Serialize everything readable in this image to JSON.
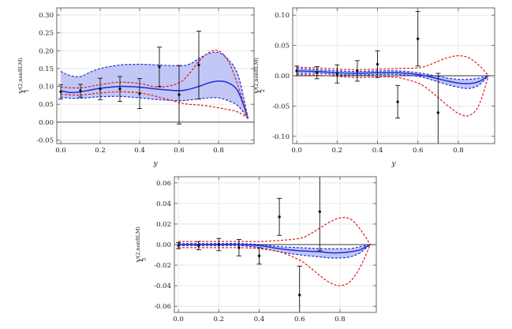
{
  "chart_data": [
    {
      "type": "line",
      "xlabel": "y",
      "ylabel": "Y_1^{(2,nonBLM)}",
      "ylabel_main": "Y",
      "ylabel_sub": "1",
      "ylabel_sup": "(2,nonBLM)",
      "xlim": [
        -0.02,
        0.98
      ],
      "ylim": [
        -0.06,
        0.32
      ],
      "xticks": [
        0.0,
        0.2,
        0.4,
        0.6,
        0.8
      ],
      "xtick_labels": [
        "0.0",
        "0.2",
        "0.4",
        "0.6",
        "0.8"
      ],
      "yticks": [
        -0.05,
        0.0,
        0.05,
        0.1,
        0.15,
        0.2,
        0.25,
        0.3
      ],
      "ytick_labels": [
        "-0.05",
        "0.00",
        "0.05",
        "0.10",
        "0.15",
        "0.20",
        "0.25",
        "0.30"
      ],
      "grid": true,
      "series": [
        {
          "style": "central",
          "color": "#1a2fd6",
          "x": [
            0,
            0.05,
            0.1,
            0.15,
            0.2,
            0.3,
            0.4,
            0.5,
            0.6,
            0.65,
            0.7,
            0.75,
            0.8,
            0.85,
            0.9,
            0.95
          ],
          "y": [
            0.088,
            0.083,
            0.085,
            0.09,
            0.095,
            0.1,
            0.098,
            0.092,
            0.088,
            0.092,
            0.1,
            0.11,
            0.115,
            0.11,
            0.085,
            0.01
          ]
        },
        {
          "style": "band-upper",
          "color": "#1a2fd6",
          "x": [
            0,
            0.05,
            0.1,
            0.15,
            0.2,
            0.3,
            0.4,
            0.5,
            0.6,
            0.65,
            0.7,
            0.75,
            0.8,
            0.85,
            0.9,
            0.95
          ],
          "y": [
            0.142,
            0.13,
            0.128,
            0.14,
            0.15,
            0.16,
            0.162,
            0.16,
            0.158,
            0.162,
            0.178,
            0.192,
            0.195,
            0.175,
            0.13,
            0.01
          ]
        },
        {
          "style": "band-lower",
          "color": "#1a2fd6",
          "x": [
            0,
            0.05,
            0.1,
            0.15,
            0.2,
            0.3,
            0.4,
            0.5,
            0.6,
            0.65,
            0.7,
            0.75,
            0.8,
            0.85,
            0.9,
            0.95
          ],
          "y": [
            0.07,
            0.067,
            0.067,
            0.069,
            0.071,
            0.072,
            0.068,
            0.063,
            0.06,
            0.062,
            0.065,
            0.068,
            0.068,
            0.06,
            0.045,
            0.01
          ]
        },
        {
          "style": "dashed",
          "color": "#e01818",
          "x": [
            0,
            0.1,
            0.2,
            0.3,
            0.4,
            0.5,
            0.6,
            0.65,
            0.7,
            0.75,
            0.8,
            0.85,
            0.9,
            0.95
          ],
          "y": [
            0.098,
            0.096,
            0.105,
            0.112,
            0.108,
            0.098,
            0.11,
            0.135,
            0.17,
            0.195,
            0.2,
            0.17,
            0.1,
            0.01
          ]
        },
        {
          "style": "dashed",
          "color": "#e01818",
          "x": [
            0,
            0.1,
            0.2,
            0.3,
            0.4,
            0.5,
            0.6,
            0.65,
            0.7,
            0.75,
            0.8,
            0.85,
            0.9,
            0.95
          ],
          "y": [
            0.078,
            0.076,
            0.082,
            0.085,
            0.082,
            0.07,
            0.055,
            0.05,
            0.048,
            0.045,
            0.04,
            0.035,
            0.028,
            0.01
          ]
        }
      ],
      "points": [
        {
          "x": 0.0,
          "y": 0.085,
          "err": 0.02
        },
        {
          "x": 0.1,
          "y": 0.088,
          "err": 0.018
        },
        {
          "x": 0.2,
          "y": 0.093,
          "err": 0.03
        },
        {
          "x": 0.3,
          "y": 0.093,
          "err": 0.035
        },
        {
          "x": 0.4,
          "y": 0.08,
          "err": 0.042
        },
        {
          "x": 0.5,
          "y": 0.155,
          "err": 0.055
        },
        {
          "x": 0.6,
          "y": 0.077,
          "err": 0.082
        },
        {
          "x": 0.7,
          "y": 0.16,
          "err": 0.095
        }
      ]
    },
    {
      "type": "line",
      "xlabel": "y",
      "ylabel": "Y_2^{(2,nonBLM)}",
      "ylabel_main": "Y",
      "ylabel_sub": "2",
      "ylabel_sup": "(2,nonBLM)",
      "xlim": [
        -0.02,
        0.98
      ],
      "ylim": [
        -0.112,
        0.112
      ],
      "xticks": [
        0.0,
        0.2,
        0.4,
        0.6,
        0.8
      ],
      "xtick_labels": [
        "0.0",
        "0.2",
        "0.4",
        "0.6",
        "0.8"
      ],
      "yticks": [
        -0.1,
        -0.05,
        0.0,
        0.05,
        0.1
      ],
      "ytick_labels": [
        "-0.10",
        "-0.05",
        "0.00",
        "0.05",
        "0.10"
      ],
      "grid": true,
      "series": [
        {
          "style": "central",
          "color": "#1a2fd6",
          "x": [
            0,
            0.1,
            0.2,
            0.3,
            0.4,
            0.5,
            0.6,
            0.65,
            0.7,
            0.75,
            0.8,
            0.85,
            0.9,
            0.95
          ],
          "y": [
            0.008,
            0.007,
            0.005,
            0.004,
            0.005,
            0.005,
            0.002,
            -0.001,
            -0.005,
            -0.009,
            -0.012,
            -0.013,
            -0.01,
            0.0
          ]
        },
        {
          "style": "band-upper",
          "color": "#1a2fd6",
          "x": [
            0,
            0.1,
            0.2,
            0.3,
            0.4,
            0.5,
            0.6,
            0.65,
            0.7,
            0.75,
            0.8,
            0.85,
            0.9,
            0.95
          ],
          "y": [
            0.012,
            0.01,
            0.008,
            0.007,
            0.008,
            0.008,
            0.005,
            0.002,
            -0.001,
            -0.004,
            -0.006,
            -0.006,
            -0.004,
            0.0
          ]
        },
        {
          "style": "band-lower",
          "color": "#1a2fd6",
          "x": [
            0,
            0.1,
            0.2,
            0.3,
            0.4,
            0.5,
            0.6,
            0.65,
            0.7,
            0.75,
            0.8,
            0.85,
            0.9,
            0.95
          ],
          "y": [
            0.004,
            0.004,
            0.002,
            0.001,
            0.002,
            0.002,
            -0.001,
            -0.005,
            -0.01,
            -0.015,
            -0.019,
            -0.021,
            -0.016,
            0.0
          ]
        },
        {
          "style": "dashed",
          "color": "#e01818",
          "x": [
            0,
            0.1,
            0.2,
            0.3,
            0.4,
            0.5,
            0.6,
            0.65,
            0.7,
            0.75,
            0.8,
            0.85,
            0.9,
            0.95
          ],
          "y": [
            0.014,
            0.013,
            0.011,
            0.01,
            0.011,
            0.012,
            0.013,
            0.017,
            0.024,
            0.03,
            0.033,
            0.03,
            0.018,
            0.0
          ]
        },
        {
          "style": "dashed",
          "color": "#e01818",
          "x": [
            0,
            0.1,
            0.2,
            0.3,
            0.4,
            0.5,
            0.6,
            0.65,
            0.7,
            0.75,
            0.8,
            0.85,
            0.9,
            0.95
          ],
          "y": [
            0.002,
            0.001,
            -0.001,
            -0.003,
            -0.002,
            -0.003,
            -0.012,
            -0.022,
            -0.036,
            -0.05,
            -0.062,
            -0.066,
            -0.05,
            0.0
          ]
        }
      ],
      "points": [
        {
          "x": 0.0,
          "y": 0.008,
          "err": 0.008
        },
        {
          "x": 0.1,
          "y": 0.005,
          "err": 0.01
        },
        {
          "x": 0.2,
          "y": 0.003,
          "err": 0.015
        },
        {
          "x": 0.3,
          "y": 0.008,
          "err": 0.017
        },
        {
          "x": 0.4,
          "y": 0.019,
          "err": 0.022
        },
        {
          "x": 0.5,
          "y": -0.043,
          "err": 0.027
        },
        {
          "x": 0.6,
          "y": 0.061,
          "err": 0.045
        },
        {
          "x": 0.7,
          "y": -0.061,
          "err": 0.065
        }
      ]
    },
    {
      "type": "line",
      "xlabel": "y",
      "ylabel": "Y_3^{(2,nonBLM)}",
      "ylabel_main": "Y",
      "ylabel_sub": "3",
      "ylabel_sup": "(2,nonBLM)",
      "xlim": [
        -0.02,
        0.98
      ],
      "ylim": [
        -0.066,
        0.066
      ],
      "xticks": [
        0.0,
        0.2,
        0.4,
        0.6,
        0.8
      ],
      "xtick_labels": [
        "0.0",
        "0.2",
        "0.4",
        "0.6",
        "0.8"
      ],
      "yticks": [
        -0.06,
        -0.04,
        -0.02,
        0.0,
        0.02,
        0.04,
        0.06
      ],
      "ytick_labels": [
        "-0.06",
        "-0.04",
        "-0.02",
        "0.00",
        "0.02",
        "0.04",
        "0.06"
      ],
      "grid": true,
      "series": [
        {
          "style": "central",
          "color": "#1a2fd6",
          "x": [
            0,
            0.1,
            0.2,
            0.3,
            0.4,
            0.5,
            0.6,
            0.7,
            0.75,
            0.8,
            0.85,
            0.9,
            0.95
          ],
          "y": [
            0.0,
            0.0,
            0.0,
            0.0,
            -0.001,
            -0.004,
            -0.006,
            -0.007,
            -0.008,
            -0.008,
            -0.007,
            -0.005,
            0.0
          ]
        },
        {
          "style": "band-upper",
          "color": "#1a2fd6",
          "x": [
            0,
            0.1,
            0.2,
            0.3,
            0.4,
            0.5,
            0.6,
            0.7,
            0.75,
            0.8,
            0.85,
            0.9,
            0.95
          ],
          "y": [
            0.001,
            0.001,
            0.001,
            0.001,
            0.0,
            -0.002,
            -0.003,
            -0.004,
            -0.004,
            -0.004,
            -0.004,
            -0.002,
            0.0
          ]
        },
        {
          "style": "band-lower",
          "color": "#1a2fd6",
          "x": [
            0,
            0.1,
            0.2,
            0.3,
            0.4,
            0.5,
            0.6,
            0.7,
            0.75,
            0.8,
            0.85,
            0.9,
            0.95
          ],
          "y": [
            -0.001,
            -0.001,
            -0.001,
            -0.001,
            -0.003,
            -0.007,
            -0.01,
            -0.012,
            -0.013,
            -0.013,
            -0.012,
            -0.008,
            0.0
          ]
        },
        {
          "style": "dashed",
          "color": "#e01818",
          "x": [
            0,
            0.1,
            0.2,
            0.3,
            0.4,
            0.5,
            0.6,
            0.65,
            0.7,
            0.75,
            0.8,
            0.85,
            0.9,
            0.95
          ],
          "y": [
            0.003,
            0.003,
            0.003,
            0.003,
            0.003,
            0.004,
            0.006,
            0.01,
            0.016,
            0.022,
            0.026,
            0.025,
            0.015,
            0.0
          ]
        },
        {
          "style": "dashed",
          "color": "#e01818",
          "x": [
            0,
            0.1,
            0.2,
            0.3,
            0.4,
            0.5,
            0.6,
            0.65,
            0.7,
            0.75,
            0.8,
            0.85,
            0.9,
            0.95
          ],
          "y": [
            -0.003,
            -0.003,
            -0.003,
            -0.003,
            -0.004,
            -0.007,
            -0.015,
            -0.022,
            -0.03,
            -0.037,
            -0.04,
            -0.036,
            -0.022,
            0.0
          ]
        }
      ],
      "points": [
        {
          "x": 0.0,
          "y": -0.001,
          "err": 0.003
        },
        {
          "x": 0.1,
          "y": -0.001,
          "err": 0.004
        },
        {
          "x": 0.2,
          "y": 0.0,
          "err": 0.006
        },
        {
          "x": 0.3,
          "y": -0.003,
          "err": 0.008
        },
        {
          "x": 0.4,
          "y": -0.011,
          "err": 0.008
        },
        {
          "x": 0.5,
          "y": 0.027,
          "err": 0.018
        },
        {
          "x": 0.6,
          "y": -0.049,
          "err": 0.028
        },
        {
          "x": 0.7,
          "y": 0.032,
          "err": 0.038
        }
      ]
    }
  ]
}
